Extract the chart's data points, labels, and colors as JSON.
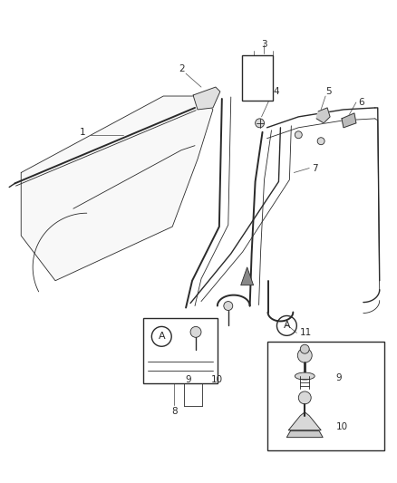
{
  "bg_color": "#ffffff",
  "line_color": "#2a2a2a",
  "figsize": [
    4.38,
    5.33
  ],
  "dpi": 100,
  "lw_main": 1.0,
  "lw_thin": 0.6,
  "lw_thick": 1.4,
  "label_fs": 7.5
}
